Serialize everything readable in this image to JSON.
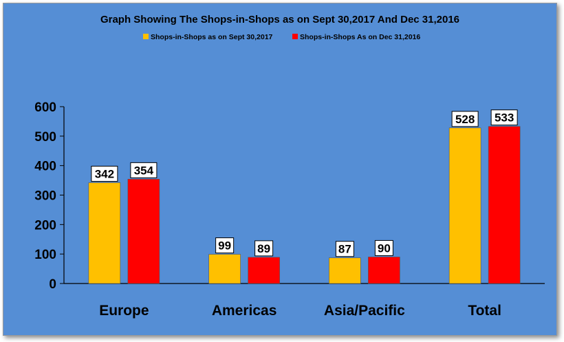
{
  "colors": {
    "background": "#558ed5",
    "series_0": "#ffc000",
    "series_1": "#ff0000"
  },
  "chart_data": {
    "type": "bar",
    "title": "Graph Showing The Shops-in-Shops as on Sept 30,2017 And Dec 31,2016",
    "categories": [
      "Europe",
      "Americas",
      "Asia/Pacific",
      "Total"
    ],
    "series": [
      {
        "name": "Shops-in-Shops  as on Sept 30,2017",
        "values": [
          342,
          99,
          87,
          528
        ]
      },
      {
        "name": "Shops-in-Shops  As on Dec 31,2016",
        "values": [
          354,
          89,
          90,
          533
        ]
      }
    ],
    "xlabel": "",
    "ylabel": "",
    "ylim": [
      0,
      600
    ],
    "yticks": [
      "0",
      "100",
      "200",
      "300",
      "400",
      "500",
      "600"
    ],
    "legend": "top",
    "grid": false,
    "data_labels": true
  }
}
